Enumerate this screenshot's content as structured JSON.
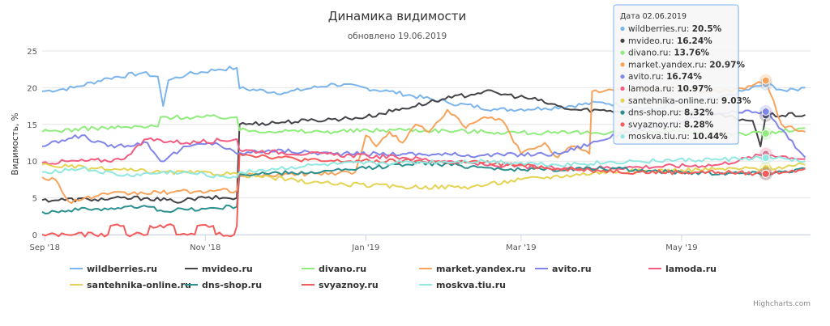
{
  "chart_data": {
    "type": "line",
    "title": "Динамика видимости",
    "subtitle": "обновлено 19.06.2019",
    "ylabel": "Видимость, %",
    "xlabel": "",
    "ylim": [
      0,
      25
    ],
    "yticks": [
      "0",
      "5",
      "10",
      "15",
      "20",
      "25"
    ],
    "x_range": [
      "2018-08-31",
      "2019-06-19"
    ],
    "xticks": [
      {
        "date": "2018-09-01",
        "label": "Sep '18"
      },
      {
        "date": "2018-11-01",
        "label": "Nov '18"
      },
      {
        "date": "2019-01-01",
        "label": "Jan '19"
      },
      {
        "date": "2019-03-01",
        "label": "Mar '19"
      },
      {
        "date": "2019-05-01",
        "label": "May '19"
      }
    ],
    "grid": "horizontal",
    "legend_position": "bottom",
    "credits": "Highcharts.com",
    "tooltip": {
      "date_label": "Дата 02.06.2019",
      "date": "2019-06-02",
      "rows": [
        {
          "name": "wildberries.ru",
          "value": "20.5%"
        },
        {
          "name": "mvideo.ru",
          "value": "16.24%"
        },
        {
          "name": "divano.ru",
          "value": "13.76%"
        },
        {
          "name": "market.yandex.ru",
          "value": "20.97%"
        },
        {
          "name": "avito.ru",
          "value": "16.74%"
        },
        {
          "name": "lamoda.ru",
          "value": "10.97%"
        },
        {
          "name": "santehnika-online.ru",
          "value": "9.03%"
        },
        {
          "name": "dns-shop.ru",
          "value": "8.32%"
        },
        {
          "name": "svyaznoy.ru",
          "value": "8.28%"
        },
        {
          "name": "moskva.tiu.ru",
          "value": "10.44%"
        }
      ]
    },
    "series": [
      {
        "name": "wildberries.ru",
        "color": "#7cb5ec",
        "points": [
          [
            "2018-08-31",
            19.5
          ],
          [
            "2018-09-12",
            20.0
          ],
          [
            "2018-09-25",
            21.3
          ],
          [
            "2018-10-08",
            22.0
          ],
          [
            "2018-10-14",
            21.5
          ],
          [
            "2018-10-16",
            17.5
          ],
          [
            "2018-10-18",
            21.0
          ],
          [
            "2018-10-25",
            21.8
          ],
          [
            "2018-11-06",
            22.5
          ],
          [
            "2018-11-13",
            22.7
          ],
          [
            "2018-11-14",
            19.9
          ],
          [
            "2018-12-01",
            19.3
          ],
          [
            "2018-12-20",
            20.5
          ],
          [
            "2019-01-10",
            19.5
          ],
          [
            "2019-02-01",
            18.0
          ],
          [
            "2019-02-20",
            17.0
          ],
          [
            "2019-03-10",
            17.2
          ],
          [
            "2019-04-01",
            18.0
          ],
          [
            "2019-04-20",
            17.0
          ],
          [
            "2019-05-01",
            18.0
          ],
          [
            "2019-05-15",
            18.5
          ],
          [
            "2019-06-02",
            20.5
          ],
          [
            "2019-06-10",
            19.5
          ],
          [
            "2019-06-17",
            20.0
          ]
        ]
      },
      {
        "name": "mvideo.ru",
        "color": "#434348",
        "points": [
          [
            "2018-08-31",
            4.7
          ],
          [
            "2018-09-20",
            4.8
          ],
          [
            "2018-10-10",
            5.0
          ],
          [
            "2018-10-20",
            4.5
          ],
          [
            "2018-11-01",
            5.0
          ],
          [
            "2018-11-13",
            5.0
          ],
          [
            "2018-11-14",
            15.0
          ],
          [
            "2018-12-10",
            15.5
          ],
          [
            "2019-01-01",
            16.0
          ],
          [
            "2019-01-25",
            18.0
          ],
          [
            "2019-02-15",
            19.5
          ],
          [
            "2019-03-05",
            18.5
          ],
          [
            "2019-03-20",
            17.0
          ],
          [
            "2019-04-15",
            16.8
          ],
          [
            "2019-05-10",
            16.5
          ],
          [
            "2019-05-28",
            15.5
          ],
          [
            "2019-05-31",
            12.0
          ],
          [
            "2019-06-02",
            16.24
          ],
          [
            "2019-06-17",
            16.3
          ]
        ]
      },
      {
        "name": "divano.ru",
        "color": "#90ed7d",
        "points": [
          [
            "2018-08-31",
            14.0
          ],
          [
            "2018-09-20",
            14.5
          ],
          [
            "2018-10-14",
            14.7
          ],
          [
            "2018-10-15",
            16.0
          ],
          [
            "2018-11-13",
            16.0
          ],
          [
            "2018-11-14",
            14.2
          ],
          [
            "2018-12-15",
            14.0
          ],
          [
            "2019-01-15",
            14.3
          ],
          [
            "2019-02-15",
            14.0
          ],
          [
            "2019-03-15",
            13.8
          ],
          [
            "2019-04-15",
            14.0
          ],
          [
            "2019-05-15",
            13.8
          ],
          [
            "2019-06-02",
            13.76
          ],
          [
            "2019-06-17",
            14.5
          ]
        ]
      },
      {
        "name": "market.yandex.ru",
        "color": "#f7a35c",
        "points": [
          [
            "2018-08-31",
            7.8
          ],
          [
            "2018-09-05",
            7.5
          ],
          [
            "2018-09-10",
            4.5
          ],
          [
            "2018-09-25",
            5.5
          ],
          [
            "2018-10-20",
            5.8
          ],
          [
            "2018-11-13",
            6.0
          ],
          [
            "2018-11-14",
            8.0
          ],
          [
            "2018-12-10",
            8.3
          ],
          [
            "2018-12-28",
            8.5
          ],
          [
            "2019-01-01",
            13.5
          ],
          [
            "2019-01-05",
            12.0
          ],
          [
            "2019-01-10",
            14.0
          ],
          [
            "2019-01-15",
            12.5
          ],
          [
            "2019-01-20",
            15.0
          ],
          [
            "2019-01-25",
            14.0
          ],
          [
            "2019-02-01",
            17.0
          ],
          [
            "2019-02-08",
            14.5
          ],
          [
            "2019-02-15",
            16.0
          ],
          [
            "2019-02-22",
            15.5
          ],
          [
            "2019-03-01",
            11.0
          ],
          [
            "2019-03-10",
            12.5
          ],
          [
            "2019-03-15",
            10.5
          ],
          [
            "2019-03-20",
            12.0
          ],
          [
            "2019-03-27",
            11.0
          ],
          [
            "2019-03-28",
            19.5
          ],
          [
            "2019-04-10",
            19.8
          ],
          [
            "2019-04-25",
            20.0
          ],
          [
            "2019-05-10",
            19.5
          ],
          [
            "2019-05-25",
            19.8
          ],
          [
            "2019-06-02",
            20.97
          ],
          [
            "2019-06-08",
            15.0
          ],
          [
            "2019-06-17",
            14.0
          ]
        ]
      },
      {
        "name": "avito.ru",
        "color": "#8085e9",
        "points": [
          [
            "2018-08-31",
            12.0
          ],
          [
            "2018-09-15",
            13.5
          ],
          [
            "2018-09-25",
            12.0
          ],
          [
            "2018-10-10",
            12.5
          ],
          [
            "2018-10-15",
            10.0
          ],
          [
            "2018-10-25",
            12.0
          ],
          [
            "2018-11-05",
            12.5
          ],
          [
            "2018-11-13",
            11.0
          ],
          [
            "2018-11-25",
            11.5
          ],
          [
            "2018-12-20",
            11.0
          ],
          [
            "2019-01-15",
            11.0
          ],
          [
            "2019-02-15",
            10.8
          ],
          [
            "2019-03-15",
            11.0
          ],
          [
            "2019-04-10",
            14.0
          ],
          [
            "2019-04-25",
            15.0
          ],
          [
            "2019-05-15",
            16.5
          ],
          [
            "2019-06-02",
            16.74
          ],
          [
            "2019-06-17",
            10.5
          ]
        ]
      },
      {
        "name": "lamoda.ru",
        "color": "#f15c80",
        "points": [
          [
            "2018-08-31",
            9.8
          ],
          [
            "2018-09-30",
            10.2
          ],
          [
            "2018-10-10",
            13.0
          ],
          [
            "2018-10-25",
            12.5
          ],
          [
            "2018-11-13",
            13.0
          ],
          [
            "2018-11-14",
            11.5
          ],
          [
            "2018-12-10",
            11.0
          ],
          [
            "2019-01-15",
            10.5
          ],
          [
            "2019-02-15",
            9.5
          ],
          [
            "2019-03-15",
            9.0
          ],
          [
            "2019-04-15",
            9.2
          ],
          [
            "2019-05-15",
            9.5
          ],
          [
            "2019-06-02",
            10.97
          ],
          [
            "2019-06-17",
            10.3
          ]
        ]
      },
      {
        "name": "santehnika-online.ru",
        "color": "#e4d354",
        "points": [
          [
            "2018-08-31",
            9.5
          ],
          [
            "2018-09-20",
            9.0
          ],
          [
            "2018-10-15",
            8.5
          ],
          [
            "2018-11-13",
            8.3
          ],
          [
            "2018-11-14",
            8.2
          ],
          [
            "2018-12-15",
            7.0
          ],
          [
            "2019-01-15",
            6.5
          ],
          [
            "2019-02-10",
            6.5
          ],
          [
            "2019-03-01",
            7.5
          ],
          [
            "2019-04-01",
            8.5
          ],
          [
            "2019-05-01",
            8.8
          ],
          [
            "2019-06-02",
            9.03
          ],
          [
            "2019-06-17",
            9.5
          ]
        ]
      },
      {
        "name": "dns-shop.ru",
        "color": "#2b908f",
        "points": [
          [
            "2018-08-31",
            3.1
          ],
          [
            "2018-09-20",
            3.5
          ],
          [
            "2018-10-10",
            3.8
          ],
          [
            "2018-10-15",
            3.3
          ],
          [
            "2018-11-01",
            3.5
          ],
          [
            "2018-11-13",
            3.8
          ],
          [
            "2018-11-14",
            8.2
          ],
          [
            "2018-12-15",
            8.5
          ],
          [
            "2019-01-01",
            9.0
          ],
          [
            "2019-01-20",
            9.8
          ],
          [
            "2019-02-10",
            9.3
          ],
          [
            "2019-03-01",
            8.8
          ],
          [
            "2019-04-01",
            9.0
          ],
          [
            "2019-05-01",
            8.5
          ],
          [
            "2019-06-02",
            8.32
          ],
          [
            "2019-06-17",
            9.0
          ]
        ]
      },
      {
        "name": "svyaznoy.ru",
        "color": "#f45b5b",
        "points": [
          [
            "2018-08-31",
            0
          ],
          [
            "2018-09-25",
            0
          ],
          [
            "2018-09-26",
            1.2
          ],
          [
            "2018-10-01",
            1.2
          ],
          [
            "2018-10-02",
            0
          ],
          [
            "2018-10-10",
            0
          ],
          [
            "2018-10-11",
            1.2
          ],
          [
            "2018-10-20",
            1.2
          ],
          [
            "2018-10-21",
            0
          ],
          [
            "2018-10-28",
            0
          ],
          [
            "2018-10-29",
            1.2
          ],
          [
            "2018-11-04",
            1.2
          ],
          [
            "2018-11-05",
            0
          ],
          [
            "2018-11-12",
            0
          ],
          [
            "2018-11-13",
            1.2
          ],
          [
            "2018-11-14",
            11.0
          ],
          [
            "2018-12-15",
            10.0
          ],
          [
            "2019-01-15",
            10.0
          ],
          [
            "2019-02-15",
            9.8
          ],
          [
            "2019-03-15",
            9.0
          ],
          [
            "2019-04-15",
            8.5
          ],
          [
            "2019-05-15",
            8.5
          ],
          [
            "2019-06-02",
            8.28
          ],
          [
            "2019-06-17",
            9.0
          ]
        ]
      },
      {
        "name": "moskva.tiu.ru",
        "color": "#91e8e1",
        "points": [
          [
            "2018-08-31",
            8.5
          ],
          [
            "2018-09-15",
            9.0
          ],
          [
            "2018-10-01",
            8.0
          ],
          [
            "2018-10-20",
            8.5
          ],
          [
            "2018-11-13",
            7.8
          ],
          [
            "2018-11-14",
            8.5
          ],
          [
            "2018-12-15",
            9.5
          ],
          [
            "2019-01-15",
            9.8
          ],
          [
            "2019-02-15",
            10.0
          ],
          [
            "2019-03-15",
            9.5
          ],
          [
            "2019-04-15",
            10.0
          ],
          [
            "2019-05-15",
            10.2
          ],
          [
            "2019-06-02",
            10.44
          ],
          [
            "2019-06-17",
            10.0
          ]
        ]
      }
    ]
  }
}
